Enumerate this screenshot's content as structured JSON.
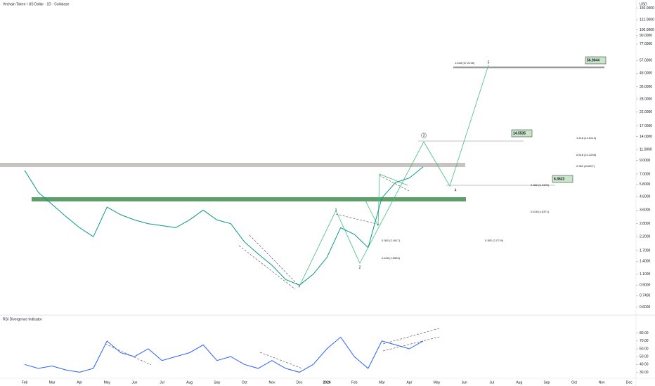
{
  "chart_data": {
    "type": "line",
    "title": "Vechain Token / US Dollar · 1D · Coinbase",
    "log_scale": true,
    "grid": false,
    "categories": [
      "Feb",
      null,
      "Mar",
      null,
      "Apr",
      null,
      "May",
      null,
      "Jun",
      null,
      "Jul",
      null,
      "Aug",
      null,
      "Sep",
      null,
      "Oct",
      null,
      "Nov",
      null,
      "Dec",
      null,
      "2026",
      null,
      "Feb",
      null,
      "Mar",
      null,
      "Apr",
      null,
      "May",
      null,
      "Jun",
      null,
      "Jul",
      null,
      "Aug",
      null,
      "Sep",
      null,
      "Oct",
      null,
      "Nov",
      null,
      "Dec"
    ],
    "series": [
      {
        "name": "VET/USD",
        "color": "#089981",
        "values": [
          7.5,
          5.0,
          4.0,
          3.2,
          2.6,
          2.2,
          3.8,
          3.3,
          3.0,
          2.8,
          2.7,
          2.6,
          3.0,
          3.6,
          3.0,
          2.8,
          2.0,
          1.6,
          1.3,
          1.0,
          0.9,
          1.1,
          1.5,
          2.6,
          2.3,
          1.8,
          4.5,
          6.0,
          6.5,
          8.0,
          null,
          null,
          null,
          null,
          null,
          null,
          null,
          null,
          null,
          null,
          null,
          null,
          null,
          null,
          null
        ]
      }
    ],
    "ylim": [
      0.545,
      174
    ],
    "yticks": [
      {
        "value": 150,
        "label": "150.0000"
      },
      {
        "value": 121,
        "label": "121.0000"
      },
      {
        "value": 100,
        "label": "100.0000"
      },
      {
        "value": 90,
        "label": "90.0000"
      },
      {
        "value": 77,
        "label": "77.0000"
      },
      {
        "value": 57,
        "label": "57.0000"
      },
      {
        "value": 45,
        "label": "45.0000"
      },
      {
        "value": 35,
        "label": "35.0000"
      },
      {
        "value": 28,
        "label": "28.0000"
      },
      {
        "value": 22,
        "label": "22.0000"
      },
      {
        "value": 17,
        "label": "17.0000"
      },
      {
        "value": 14,
        "label": "14.0000"
      },
      {
        "value": 11,
        "label": "11.0000"
      },
      {
        "value": 9,
        "label": "9.0000"
      },
      {
        "value": 7,
        "label": "7.0000"
      },
      {
        "value": 5.8,
        "label": "5.8000"
      },
      {
        "value": 4.6,
        "label": "4.6000"
      },
      {
        "value": 3.6,
        "label": "3.6000"
      },
      {
        "value": 2.8,
        "label": "2.8000"
      },
      {
        "value": 2.2,
        "label": "2.2000"
      },
      {
        "value": 1.7,
        "label": "1.7000"
      },
      {
        "value": 1.4,
        "label": "1.4000"
      },
      {
        "value": 1.1,
        "label": "1.1000"
      },
      {
        "value": 0.9,
        "label": "0.9000"
      },
      {
        "value": 0.74,
        "label": "0.7400"
      },
      {
        "value": 0.6,
        "label": "0.6000"
      }
    ],
    "price_tags": [
      "56.9044",
      "14.5535",
      "6.3623"
    ],
    "wave_labels": [
      "1",
      "2",
      "3",
      "4",
      "5"
    ],
    "fib_labels": [
      "1.618 (57.2216)",
      "1.618 (14.6213)",
      "0.618 (10.3255)",
      "0.382 (8.6607)",
      "0.382 (6.3409)",
      "0.618 (4.6371)",
      "0.382 (2.1617)",
      "0.382 (2.1719)",
      "0.618 (1.5552)"
    ],
    "indicator": {
      "title": "RSI Divergence Indicator",
      "color": "#2962ff",
      "values": [
        40,
        35,
        38,
        33,
        30,
        35,
        70,
        55,
        50,
        60,
        45,
        50,
        55,
        65,
        45,
        50,
        40,
        35,
        45,
        35,
        30,
        40,
        60,
        75,
        50,
        35,
        70,
        65,
        60,
        70,
        null,
        null,
        null,
        null,
        null,
        null,
        null,
        null,
        null,
        null,
        null,
        null,
        null,
        null,
        null
      ],
      "ylim": [
        25,
        95
      ],
      "yticks": [
        {
          "value": 80,
          "label": "80.00"
        },
        {
          "value": 70,
          "label": "70.00"
        },
        {
          "value": 60,
          "label": "60.00"
        },
        {
          "value": 50,
          "label": "50.00"
        },
        {
          "value": 40,
          "label": "40.00"
        },
        {
          "value": 30,
          "label": "30.00"
        }
      ]
    }
  }
}
